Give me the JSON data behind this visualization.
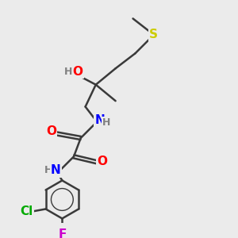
{
  "bg_color": "#ebebeb",
  "bond_color": "#3a3a3a",
  "bond_width": 1.8,
  "atom_colors": {
    "O": "#ff0000",
    "N": "#0000ff",
    "Cl": "#00aa00",
    "F": "#cc00cc",
    "S": "#cccc00",
    "H": "#808080",
    "C": "#3a3a3a"
  },
  "font_size_main": 11,
  "font_size_sub": 9
}
